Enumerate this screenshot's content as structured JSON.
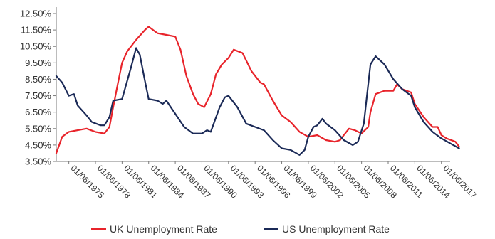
{
  "chart_data": {
    "type": "line",
    "title": "",
    "xlabel": "",
    "ylabel": "",
    "x_range": [
      "1974-01",
      "2018-01"
    ],
    "ylim": [
      3.5,
      12.5
    ],
    "y_ticks": [
      "12.50%",
      "11.50%",
      "10.50%",
      "9.50%",
      "8.50%",
      "7.50%",
      "6.50%",
      "5.50%",
      "4.50%",
      "3.50%"
    ],
    "x_ticks": [
      "01/06/1975",
      "01/06/1978",
      "01/06/1981",
      "01/06/1984",
      "01/06/1987",
      "01/06/1990",
      "01/06/1993",
      "01/06/1996",
      "01/06/1999",
      "01/06/2002",
      "01/06/2005",
      "01/06/2008",
      "01/06/2011",
      "01/06/2014",
      "01/06/2017"
    ],
    "grid": false,
    "legend_position": "bottom",
    "series": [
      {
        "name": "UK Unemployment Rate",
        "color": "#e8242b",
        "points": [
          [
            "1974-01",
            4.0
          ],
          [
            "1974-09",
            5.0
          ],
          [
            "1975-06",
            5.3
          ],
          [
            "1976-06",
            5.4
          ],
          [
            "1977-06",
            5.5
          ],
          [
            "1978-06",
            5.3
          ],
          [
            "1979-06",
            5.2
          ],
          [
            "1980-01",
            5.6
          ],
          [
            "1980-06",
            6.8
          ],
          [
            "1981-01",
            8.4
          ],
          [
            "1981-06",
            9.5
          ],
          [
            "1982-01",
            10.2
          ],
          [
            "1983-01",
            10.9
          ],
          [
            "1984-01",
            11.5
          ],
          [
            "1984-06",
            11.7
          ],
          [
            "1985-06",
            11.3
          ],
          [
            "1986-06",
            11.2
          ],
          [
            "1987-06",
            11.1
          ],
          [
            "1988-01",
            10.3
          ],
          [
            "1988-09",
            8.7
          ],
          [
            "1989-06",
            7.6
          ],
          [
            "1990-01",
            7.0
          ],
          [
            "1990-09",
            6.8
          ],
          [
            "1991-06",
            7.6
          ],
          [
            "1992-01",
            8.8
          ],
          [
            "1992-09",
            9.4
          ],
          [
            "1993-06",
            9.8
          ],
          [
            "1994-01",
            10.3
          ],
          [
            "1995-01",
            10.1
          ],
          [
            "1996-01",
            9.0
          ],
          [
            "1997-01",
            8.3
          ],
          [
            "1997-06",
            8.2
          ],
          [
            "1998-06",
            7.2
          ],
          [
            "1999-06",
            6.3
          ],
          [
            "2000-06",
            5.9
          ],
          [
            "2001-06",
            5.3
          ],
          [
            "2002-06",
            5.0
          ],
          [
            "2003-06",
            5.1
          ],
          [
            "2004-06",
            4.8
          ],
          [
            "2005-06",
            4.7
          ],
          [
            "2006-01",
            4.8
          ],
          [
            "2006-06",
            5.1
          ],
          [
            "2007-01",
            5.5
          ],
          [
            "2007-09",
            5.4
          ],
          [
            "2008-06",
            5.2
          ],
          [
            "2009-03",
            5.6
          ],
          [
            "2009-06",
            6.5
          ],
          [
            "2010-01",
            7.6
          ],
          [
            "2011-01",
            7.8
          ],
          [
            "2012-01",
            7.8
          ],
          [
            "2012-06",
            8.2
          ],
          [
            "2013-01",
            7.9
          ],
          [
            "2014-01",
            7.7
          ],
          [
            "2014-06",
            7.0
          ],
          [
            "2015-06",
            6.2
          ],
          [
            "2016-06",
            5.6
          ],
          [
            "2017-01",
            5.6
          ],
          [
            "2017-06",
            5.1
          ],
          [
            "2018-01",
            4.9
          ],
          [
            "2019-01",
            4.7
          ],
          [
            "2019-06",
            4.4
          ]
        ]
      },
      {
        "name": "US Unemployment Rate",
        "color": "#1b2a57",
        "points": [
          [
            "1974-01",
            8.7
          ],
          [
            "1974-09",
            8.3
          ],
          [
            "1975-06",
            7.5
          ],
          [
            "1976-01",
            7.6
          ],
          [
            "1976-06",
            6.9
          ],
          [
            "1977-06",
            6.3
          ],
          [
            "1978-01",
            5.9
          ],
          [
            "1979-01",
            5.7
          ],
          [
            "1979-06",
            5.7
          ],
          [
            "1980-01",
            6.2
          ],
          [
            "1980-06",
            7.2
          ],
          [
            "1981-06",
            7.3
          ],
          [
            "1982-06",
            9.2
          ],
          [
            "1983-01",
            10.4
          ],
          [
            "1983-06",
            10.0
          ],
          [
            "1984-01",
            8.4
          ],
          [
            "1984-06",
            7.3
          ],
          [
            "1985-06",
            7.2
          ],
          [
            "1986-01",
            7.0
          ],
          [
            "1986-06",
            7.2
          ],
          [
            "1987-06",
            6.4
          ],
          [
            "1988-06",
            5.6
          ],
          [
            "1989-06",
            5.2
          ],
          [
            "1990-06",
            5.2
          ],
          [
            "1991-01",
            5.4
          ],
          [
            "1991-06",
            5.3
          ],
          [
            "1992-06",
            6.8
          ],
          [
            "1993-01",
            7.4
          ],
          [
            "1993-06",
            7.5
          ],
          [
            "1994-06",
            6.8
          ],
          [
            "1995-06",
            5.8
          ],
          [
            "1996-06",
            5.6
          ],
          [
            "1997-06",
            5.4
          ],
          [
            "1998-06",
            4.8
          ],
          [
            "1999-06",
            4.3
          ],
          [
            "2000-06",
            4.2
          ],
          [
            "2001-06",
            3.9
          ],
          [
            "2002-01",
            4.2
          ],
          [
            "2002-06",
            5.0
          ],
          [
            "2003-01",
            5.6
          ],
          [
            "2003-06",
            5.7
          ],
          [
            "2004-01",
            6.1
          ],
          [
            "2004-06",
            5.8
          ],
          [
            "2005-06",
            5.4
          ],
          [
            "2006-06",
            4.8
          ],
          [
            "2007-06",
            4.5
          ],
          [
            "2008-01",
            4.7
          ],
          [
            "2008-09",
            5.8
          ],
          [
            "2009-06",
            9.4
          ],
          [
            "2010-01",
            9.9
          ],
          [
            "2011-01",
            9.4
          ],
          [
            "2012-01",
            8.5
          ],
          [
            "2013-01",
            7.9
          ],
          [
            "2014-01",
            7.5
          ],
          [
            "2014-06",
            6.8
          ],
          [
            "2015-06",
            5.9
          ],
          [
            "2016-06",
            5.3
          ],
          [
            "2017-06",
            4.9
          ],
          [
            "2018-06",
            4.6
          ],
          [
            "2019-06",
            4.3
          ]
        ]
      }
    ]
  }
}
